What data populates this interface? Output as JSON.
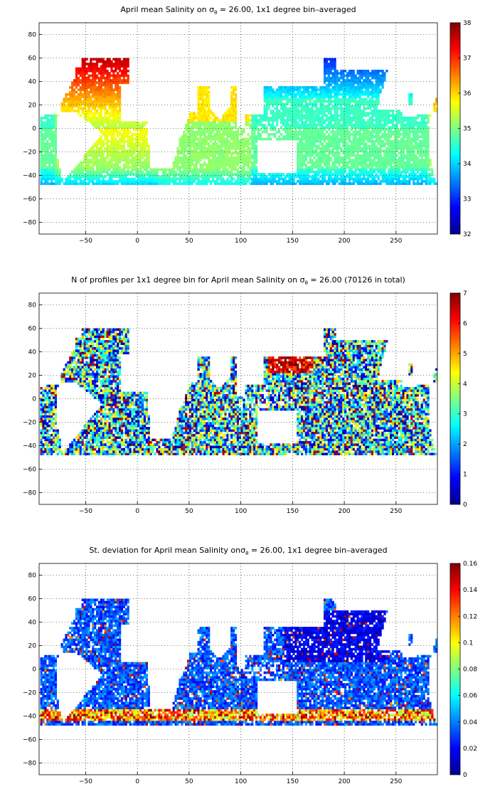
{
  "chart_data": [
    {
      "type": "heatmap",
      "title": {
        "pre": "April mean Salinity on ",
        "sym": "σ",
        "sub": "θ",
        "post": " = 26.00, 1x1 degree bin–averaged"
      },
      "xticks": [
        -50,
        0,
        50,
        100,
        150,
        200,
        250
      ],
      "yticks": [
        80,
        60,
        40,
        20,
        0,
        -20,
        -40,
        -60,
        -80
      ],
      "xlim": [
        -95,
        290
      ],
      "ylim": [
        -90,
        90
      ],
      "colorbar": {
        "ticks": [
          "38",
          "37",
          "36",
          "35",
          "34",
          "33",
          "32"
        ],
        "min": 32,
        "max": 38,
        "colormap": "jet"
      },
      "grid": true,
      "field": "mean_salinity"
    },
    {
      "type": "heatmap",
      "title": {
        "pre": "N of profiles per 1x1 degree bin for April mean Salinity on ",
        "sym": "σ",
        "sub": "θ",
        "post": " = 26.00 (70126 in total)"
      },
      "xticks": [
        -50,
        0,
        50,
        100,
        150,
        200,
        250
      ],
      "yticks": [
        80,
        60,
        40,
        20,
        0,
        -20,
        -40,
        -60,
        -80
      ],
      "xlim": [
        -95,
        290
      ],
      "ylim": [
        -90,
        90
      ],
      "colorbar": {
        "ticks": [
          "7",
          "6",
          "5",
          "4",
          "3",
          "2",
          "1",
          "0"
        ],
        "min": 0,
        "max": 7,
        "colormap": "jet"
      },
      "grid": true,
      "field": "profile_count"
    },
    {
      "type": "heatmap",
      "title": {
        "pre": "St. deviation for April mean Salinity on",
        "sym": "σ",
        "sub": "θ",
        "post": " = 26.00, 1x1 degree bin–averaged"
      },
      "xticks": [
        -50,
        0,
        50,
        100,
        150,
        200,
        250
      ],
      "yticks": [
        80,
        60,
        40,
        20,
        0,
        -20,
        -40,
        -60,
        -80
      ],
      "xlim": [
        -95,
        290
      ],
      "ylim": [
        -90,
        90
      ],
      "colorbar": {
        "ticks": [
          "0.16",
          "0.14",
          "0.12",
          "0.1",
          "0.08",
          "0.06",
          "0.04",
          "0.02",
          "0"
        ],
        "min": 0,
        "max": 0.16,
        "colormap": "jet"
      },
      "grid": true,
      "field": "std_salinity"
    }
  ]
}
